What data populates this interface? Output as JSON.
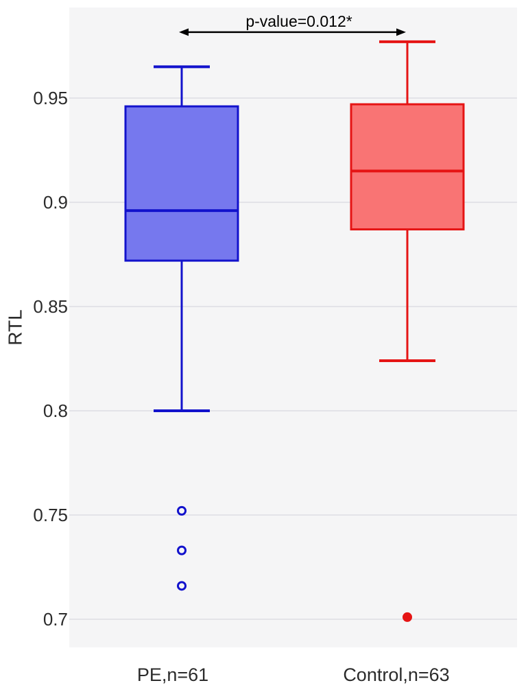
{
  "figure": {
    "kind": "boxplot-figure",
    "background_color": "#ffffff",
    "plot_background_color": "#f5f5f6",
    "gridline_color": "#e3e3e8",
    "axis_text_color": "#2b2b2b",
    "annotation_color": "#000000"
  },
  "annotation": {
    "label": "p-value=0.012*"
  },
  "y_axis": {
    "label": "RTL",
    "tick_labels": [
      "0.95",
      "0.9",
      "0.85",
      "0.8",
      "0.75",
      "0.7"
    ]
  },
  "x_axis": {
    "tick_labels": [
      "PE,n=61",
      "Control,n=63"
    ]
  },
  "chart_data": {
    "type": "boxplot",
    "title": "",
    "xlabel": "",
    "ylabel": "RTL",
    "ylim": [
      0.6865,
      0.9934
    ],
    "yticks": [
      0.95,
      0.9,
      0.85,
      0.8,
      0.75,
      0.7
    ],
    "grid": "horizontal",
    "legend": "none",
    "categories": [
      "PE,n=61",
      "Control,n=63"
    ],
    "annotation": {
      "text": "p-value=0.012*",
      "y_value": 0.9816,
      "between": [
        0,
        1
      ],
      "style": "double-headed-arrow"
    },
    "series": [
      {
        "name": "PE,n=61",
        "group": "PE",
        "n": 61,
        "whisker_low": 0.8,
        "q1": 0.872,
        "median": 0.896,
        "q3": 0.946,
        "whisker_high": 0.965,
        "outliers": [
          0.752,
          0.733,
          0.716
        ],
        "outlier_style": "open",
        "stroke_color": "#1212cc",
        "fill_color": "#7678ee"
      },
      {
        "name": "Control,n=63",
        "group": "Control",
        "n": 63,
        "whisker_low": 0.824,
        "q1": 0.887,
        "median": 0.915,
        "q3": 0.947,
        "whisker_high": 0.977,
        "outliers": [
          0.701
        ],
        "outlier_style": "filled",
        "stroke_color": "#e51414",
        "fill_color": "#f97474"
      }
    ]
  }
}
